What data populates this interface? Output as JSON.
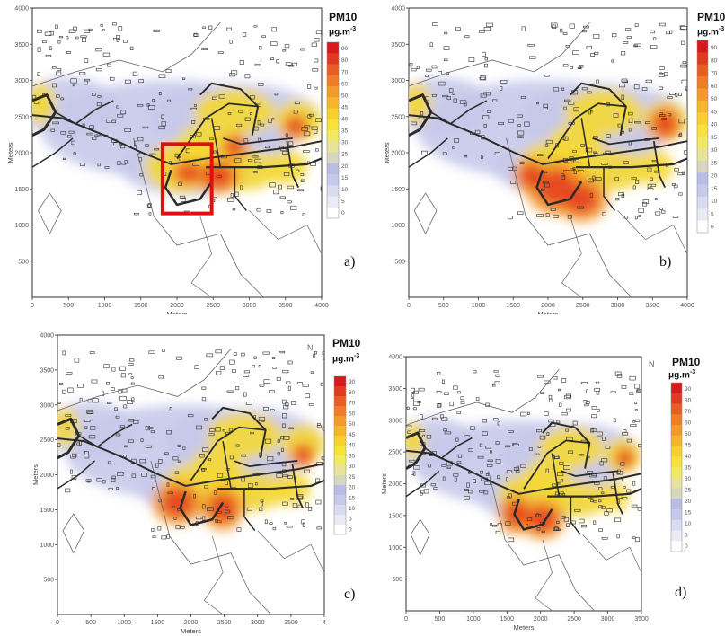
{
  "colorbar": {
    "title": "PM10",
    "unit": "μg.m",
    "unit_sup": "-3",
    "colors": [
      "#ffffff",
      "#ebebf6",
      "#d9dbf0",
      "#c6c9ea",
      "#b8bde3",
      "#d7d7bf",
      "#e8e39a",
      "#f1e964",
      "#f6e23a",
      "#f8cf2f",
      "#f6b52c",
      "#f39a2a",
      "#ee7d27",
      "#e85d24",
      "#e03b21",
      "#d71a1e"
    ]
  },
  "panels": [
    {
      "letter": "a)",
      "x_ticks": [
        "0",
        "500",
        "1000",
        "1500",
        "2000",
        "2500",
        "3000",
        "3500",
        "4000"
      ],
      "y_ticks": [
        "500",
        "1000",
        "1500",
        "2000",
        "2500",
        "3000",
        "3500",
        "4000"
      ],
      "xlabel": "Meters",
      "ylabel": "Meters",
      "cb_ticks": [
        "90",
        "80",
        "70",
        "60",
        "50",
        "45",
        "40",
        "35",
        "30",
        "25",
        "20",
        "15",
        "10",
        "5",
        "0"
      ],
      "highlight_box": true,
      "north_arrow": false
    },
    {
      "letter": "b)",
      "x_ticks": [
        "0",
        "500",
        "1000",
        "1500",
        "2000",
        "2500",
        "3000",
        "3500",
        "4000"
      ],
      "y_ticks": [
        "500",
        "1000",
        "1500",
        "2000",
        "2500",
        "3000",
        "3500",
        "4000"
      ],
      "xlabel": "Meters",
      "ylabel": "Meters",
      "cb_ticks": [
        "90",
        "80",
        "70",
        "60",
        "50",
        "45",
        "40",
        "35",
        "30",
        "25",
        "20",
        "15",
        "10",
        "5",
        "0"
      ],
      "highlight_box": false,
      "north_arrow": false
    },
    {
      "letter": "c)",
      "x_ticks": [
        "0",
        "500",
        "1000",
        "1500",
        "2000",
        "2500",
        "3000",
        "3500",
        "4"
      ],
      "y_ticks": [
        "500",
        "1000",
        "1500",
        "2000",
        "2500",
        "3000",
        "3500",
        "4000"
      ],
      "xlabel": "Meters",
      "ylabel": "Meters",
      "cb_ticks": [
        "90",
        "80",
        "70",
        "60",
        "50",
        "45",
        "40",
        "35",
        "30",
        "25",
        "20",
        "15",
        "10",
        "5",
        "0"
      ],
      "highlight_box": false,
      "north_arrow": true
    },
    {
      "letter": "d)",
      "x_ticks": [
        "0",
        "500",
        "1000",
        "1500",
        "2000",
        "2500",
        "3000",
        "3500"
      ],
      "y_ticks": [
        "500",
        "1000",
        "1500",
        "2000",
        "2500",
        "3000",
        "3500",
        "4000"
      ],
      "xlabel": "Meters",
      "ylabel": "Meters",
      "cb_ticks": [
        "90",
        "80",
        "70",
        "60",
        "50",
        "45",
        "40",
        "35",
        "30",
        "25",
        "20",
        "15",
        "10",
        "5",
        "0"
      ],
      "highlight_box": false,
      "north_arrow": true
    }
  ],
  "north_symbol": "N",
  "icons": {
    "north": "north-arrow-icon"
  }
}
